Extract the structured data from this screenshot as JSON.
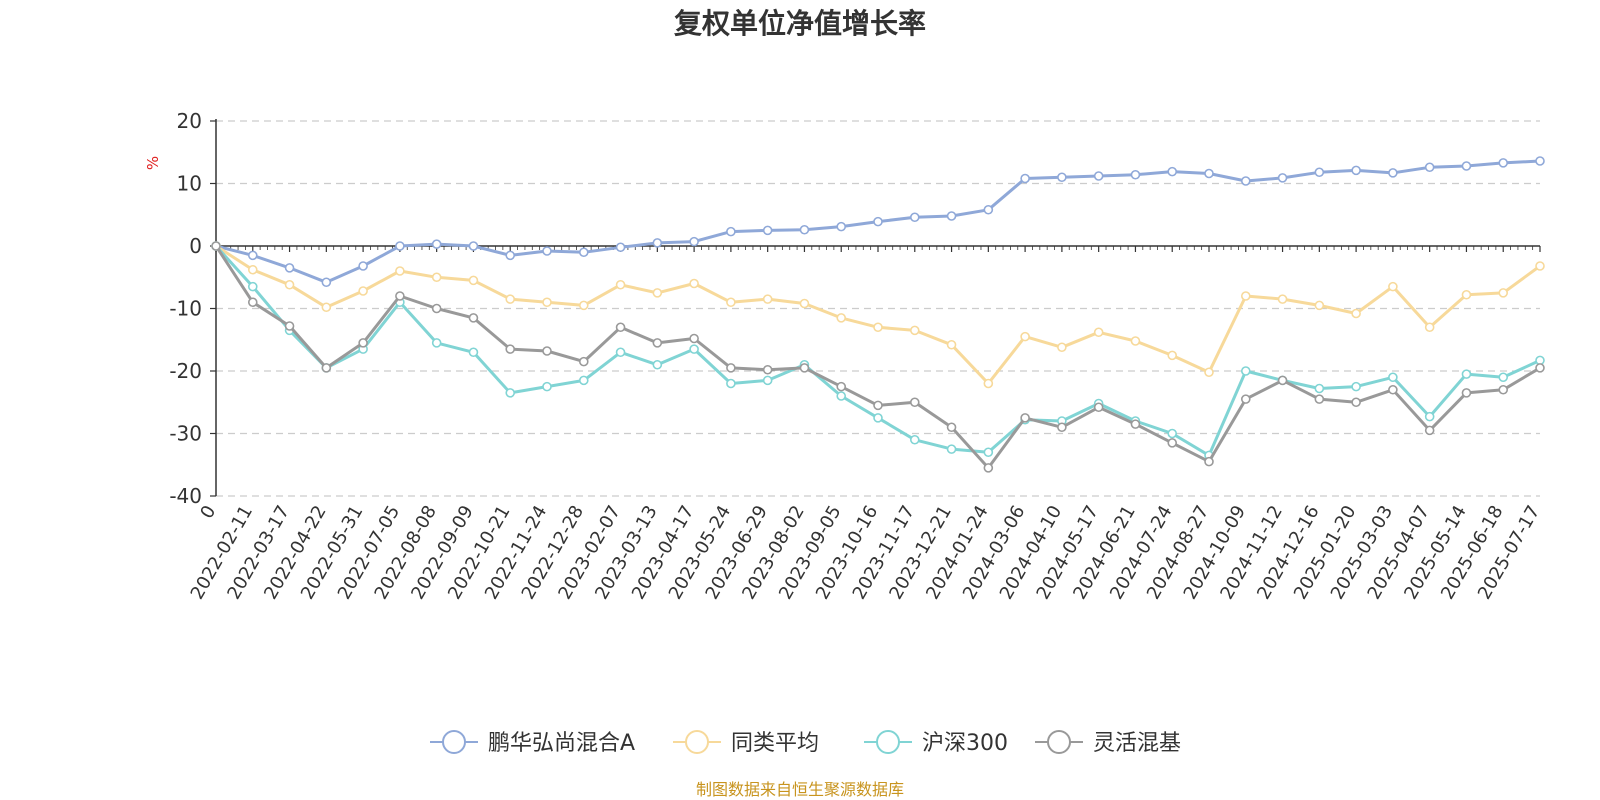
{
  "chart_data": {
    "type": "line",
    "title": "复权单位净值增长率",
    "y_unit": "%",
    "ylim": [
      -40,
      20
    ],
    "y_ticks": [
      20,
      10,
      0,
      -10,
      -20,
      -30,
      -40
    ],
    "grid": "horizontal-dashed",
    "legend_position": "bottom",
    "x_tick_labels": [
      "0",
      "2022-02-11",
      "2022-03-17",
      "2022-04-22",
      "2022-05-31",
      "2022-07-05",
      "2022-08-08",
      "2022-09-09",
      "2022-10-21",
      "2022-11-24",
      "2022-12-28",
      "2023-02-07",
      "2023-03-13",
      "2023-04-17",
      "2023-05-24",
      "2023-06-29",
      "2023-08-02",
      "2023-09-05",
      "2023-10-16",
      "2023-11-17",
      "2023-12-21",
      "2024-01-24",
      "2024-03-06",
      "2024-04-10",
      "2024-05-17",
      "2024-06-21",
      "2024-07-24",
      "2024-08-27",
      "2024-10-09",
      "2024-11-12",
      "2024-12-16",
      "2025-01-20",
      "2025-03-03",
      "2025-04-07",
      "2025-05-14",
      "2025-06-18",
      "2025-07-17"
    ],
    "series": [
      {
        "name": "鹏华弘尚混合A",
        "color": "#8fa8d8",
        "values": [
          0,
          -1.5,
          -3.5,
          -5.8,
          -3.2,
          0,
          0.3,
          0,
          -1.5,
          -0.8,
          -1,
          -0.2,
          0.5,
          0.7,
          2.3,
          2.5,
          2.6,
          3.1,
          3.9,
          4.6,
          4.8,
          5.8,
          10.8,
          11,
          11.2,
          11.4,
          11.9,
          11.6,
          10.4,
          10.9,
          11.8,
          12.1,
          11.7,
          12.6,
          12.8,
          13.3,
          13.6
        ]
      },
      {
        "name": "同类平均",
        "color": "#f7d99a",
        "values": [
          0,
          -3.8,
          -6.2,
          -9.8,
          -7.2,
          -4,
          -5,
          -5.5,
          -8.5,
          -9,
          -9.5,
          -6.2,
          -7.5,
          -6,
          -9,
          -8.5,
          -9.2,
          -11.5,
          -13,
          -13.5,
          -15.8,
          -22,
          -14.5,
          -16.2,
          -13.8,
          -15.2,
          -17.5,
          -20.2,
          -8,
          -8.5,
          -9.5,
          -10.8,
          -6.5,
          -13,
          -7.8,
          -7.5,
          -3.2
        ]
      },
      {
        "name": "沪深300",
        "color": "#80d4d4",
        "values": [
          0,
          -6.5,
          -13.5,
          -19.5,
          -16.5,
          -9,
          -15.5,
          -17,
          -23.5,
          -22.5,
          -21.5,
          -17,
          -19,
          -16.5,
          -22,
          -21.5,
          -19,
          -24,
          -27.5,
          -31,
          -32.5,
          -33,
          -27.8,
          -28,
          -25.2,
          -28,
          -30,
          -33.5,
          -20,
          -21.5,
          -22.8,
          -22.5,
          -21,
          -27.3,
          -20.5,
          -21,
          -18.3
        ]
      },
      {
        "name": "灵活混基",
        "color": "#999999",
        "values": [
          0,
          -9,
          -12.8,
          -19.5,
          -15.5,
          -8,
          -10,
          -11.5,
          -16.5,
          -16.8,
          -18.5,
          -13,
          -15.5,
          -14.8,
          -19.5,
          -19.8,
          -19.5,
          -22.5,
          -25.5,
          -25,
          -29,
          -35.5,
          -27.5,
          -29,
          -25.8,
          -28.5,
          -31.5,
          -34.5,
          -24.5,
          -21.5,
          -24.5,
          -25,
          -23,
          -29.5,
          -23.5,
          -23,
          -19.5
        ]
      }
    ]
  },
  "footer": {
    "source": "制图数据来自恒生聚源数据库"
  }
}
